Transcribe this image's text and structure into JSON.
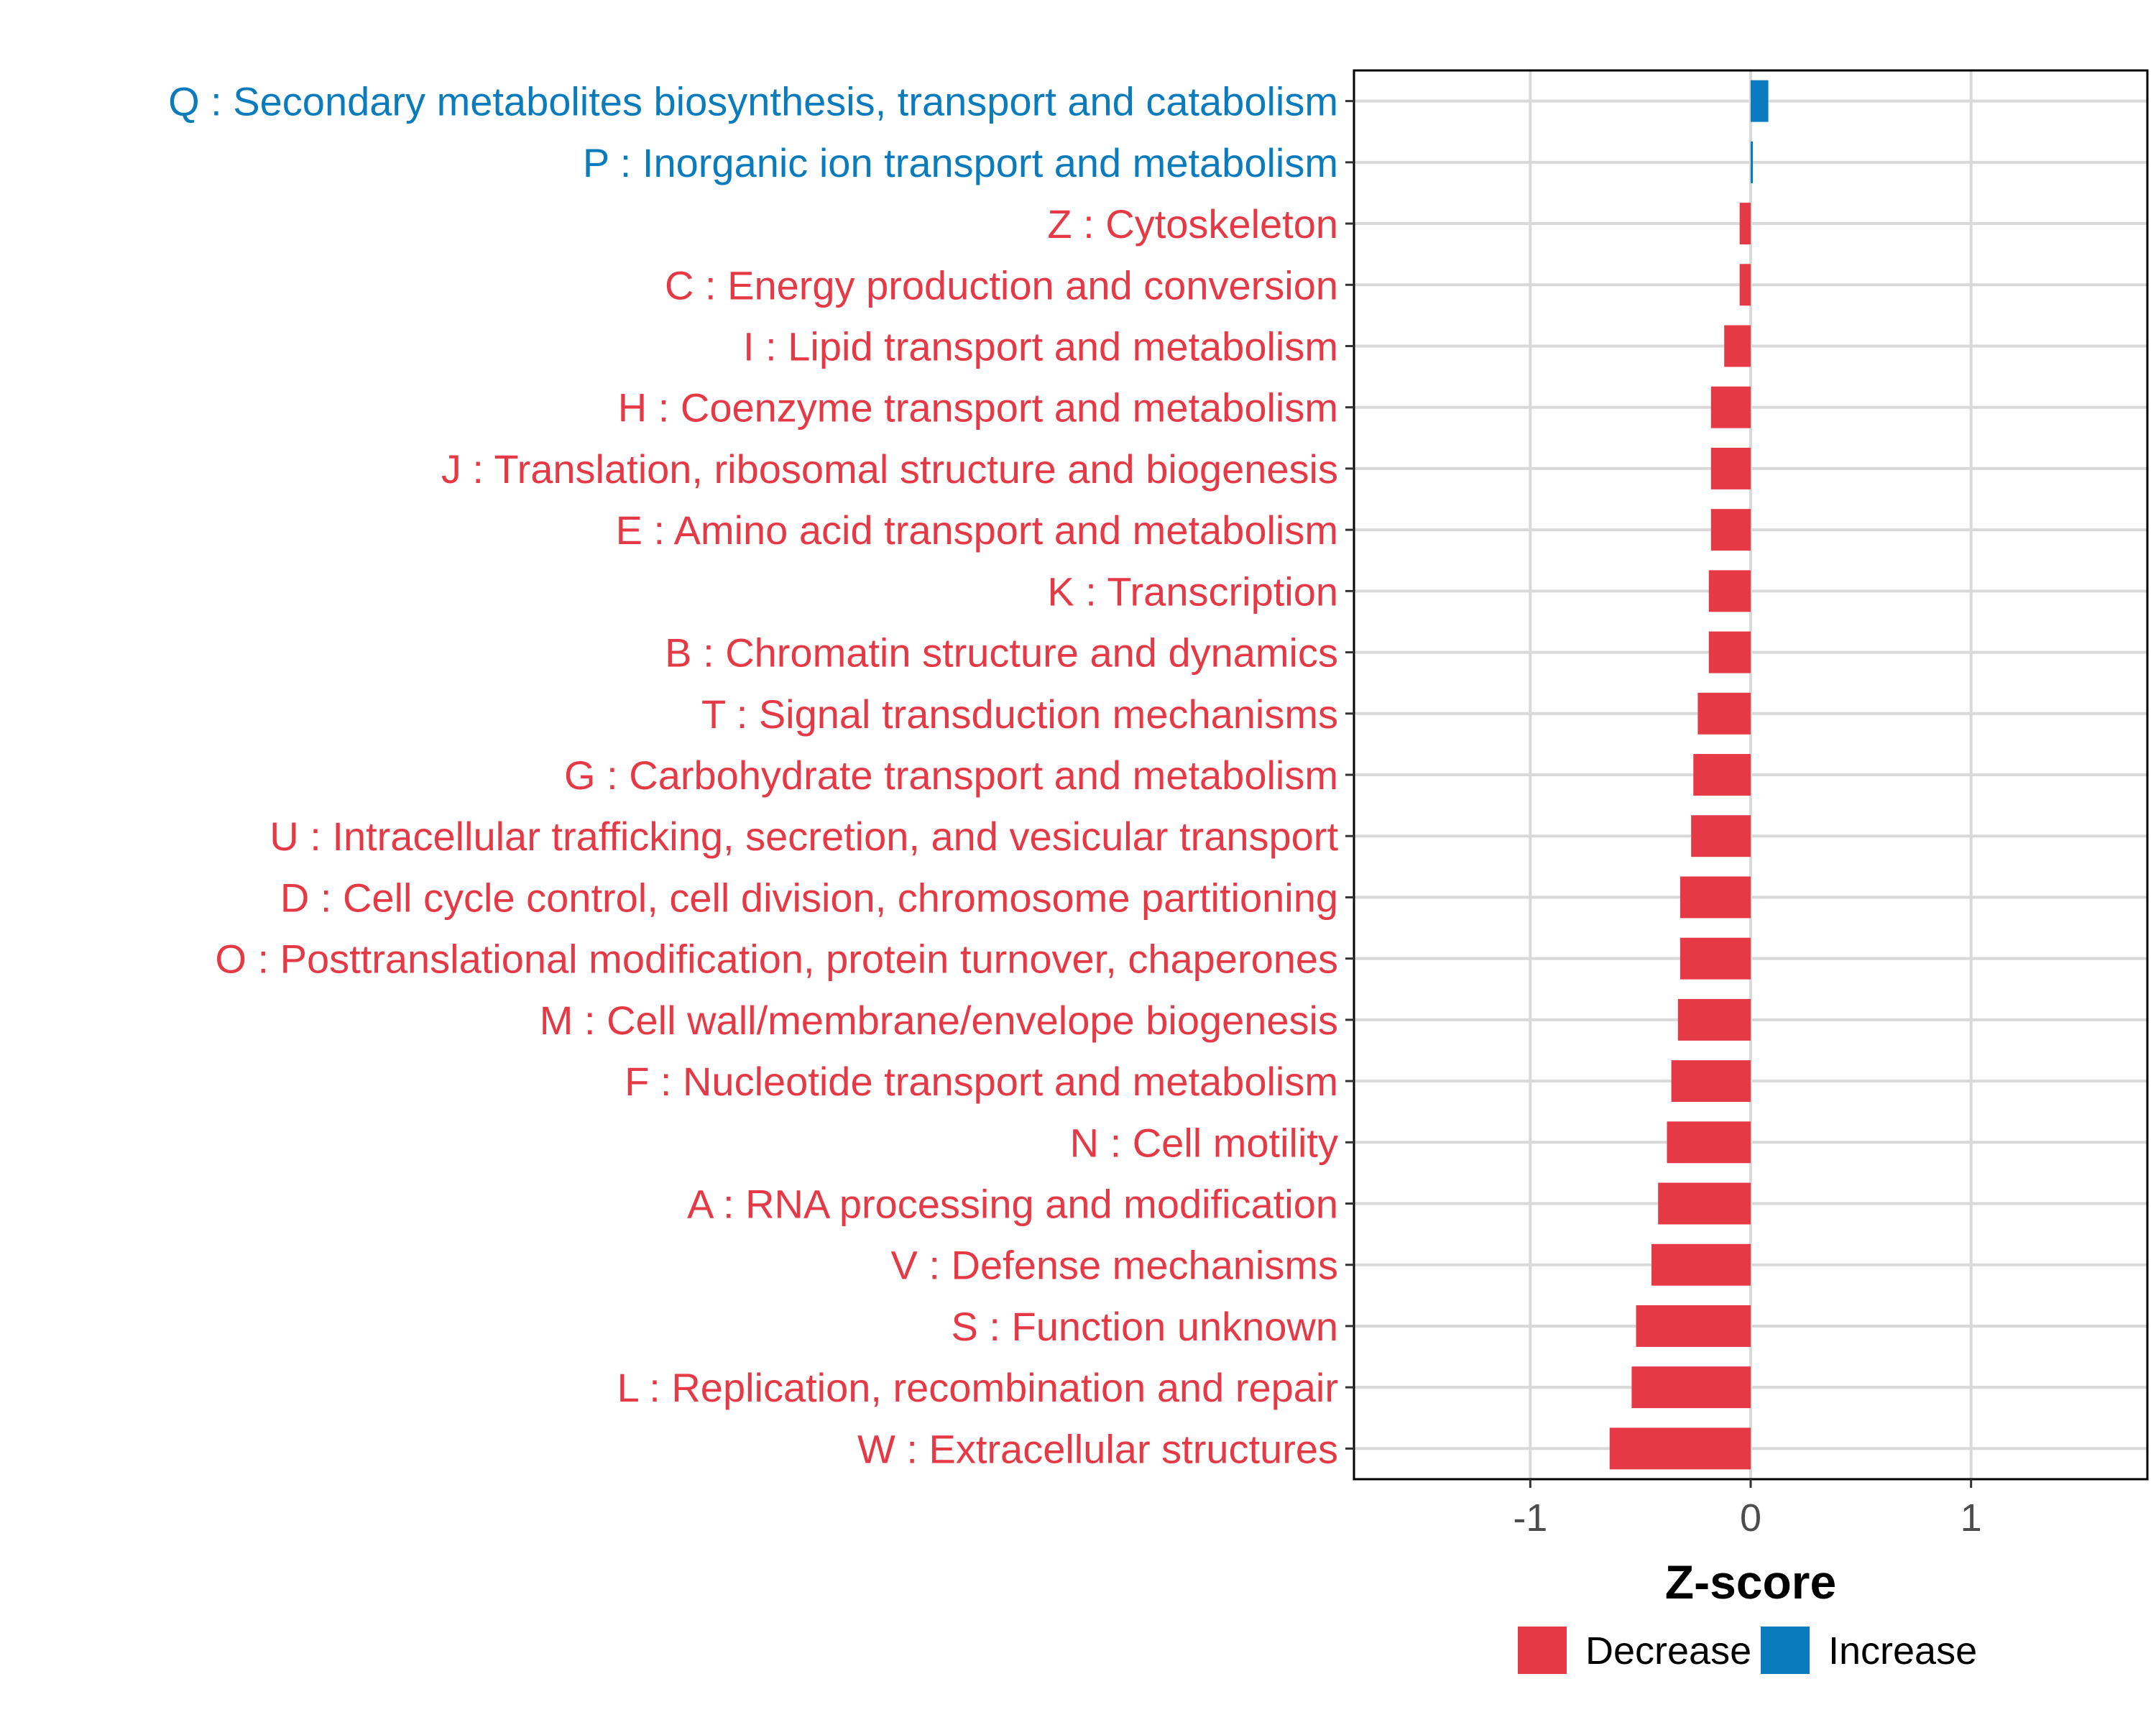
{
  "chart_data": {
    "type": "bar",
    "orientation": "horizontal",
    "title": "",
    "xlabel": "Z-score",
    "ylabel": "",
    "xlim": [
      -1.8,
      1.8
    ],
    "x_ticks": [
      -1,
      0,
      1
    ],
    "x_tick_labels": [
      "-1",
      "0",
      "1"
    ],
    "grid": true,
    "legend_position": "bottom",
    "colors": {
      "Decrease": "#e63946",
      "Increase": "#0a7bbd"
    },
    "legend": [
      {
        "label": "Decrease",
        "color": "#e63946"
      },
      {
        "label": "Increase",
        "color": "#0a7bbd"
      }
    ],
    "categories": [
      "Q : Secondary metabolites biosynthesis, transport and catabolism",
      "P : Inorganic ion transport and metabolism",
      "Z : Cytoskeleton",
      "C : Energy production and conversion",
      "I : Lipid transport and metabolism",
      "H : Coenzyme transport and metabolism",
      "J : Translation, ribosomal structure and biogenesis",
      "E : Amino acid transport and metabolism",
      "K : Transcription",
      "B : Chromatin structure and dynamics",
      "T : Signal transduction mechanisms",
      "G : Carbohydrate transport and metabolism",
      "U : Intracellular trafficking, secretion, and vesicular transport",
      "D : Cell cycle control, cell division, chromosome partitioning",
      "O : Posttranslational modification, protein turnover, chaperones",
      "M : Cell wall/membrane/envelope biogenesis",
      "F : Nucleotide transport and metabolism",
      "N : Cell motility",
      "A : RNA processing and modification",
      "V : Defense mechanisms",
      "S : Function unknown",
      "L : Replication, recombination and repair",
      "W : Extracellular structures"
    ],
    "values": [
      0.08,
      0.01,
      -0.05,
      -0.05,
      -0.12,
      -0.18,
      -0.18,
      -0.18,
      -0.19,
      -0.19,
      -0.24,
      -0.26,
      -0.27,
      -0.32,
      -0.32,
      -0.33,
      -0.36,
      -0.38,
      -0.42,
      -0.45,
      -0.52,
      -0.54,
      -0.64
    ],
    "groups": [
      "Increase",
      "Increase",
      "Decrease",
      "Decrease",
      "Decrease",
      "Decrease",
      "Decrease",
      "Decrease",
      "Decrease",
      "Decrease",
      "Decrease",
      "Decrease",
      "Decrease",
      "Decrease",
      "Decrease",
      "Decrease",
      "Decrease",
      "Decrease",
      "Decrease",
      "Decrease",
      "Decrease",
      "Decrease",
      "Decrease"
    ]
  }
}
